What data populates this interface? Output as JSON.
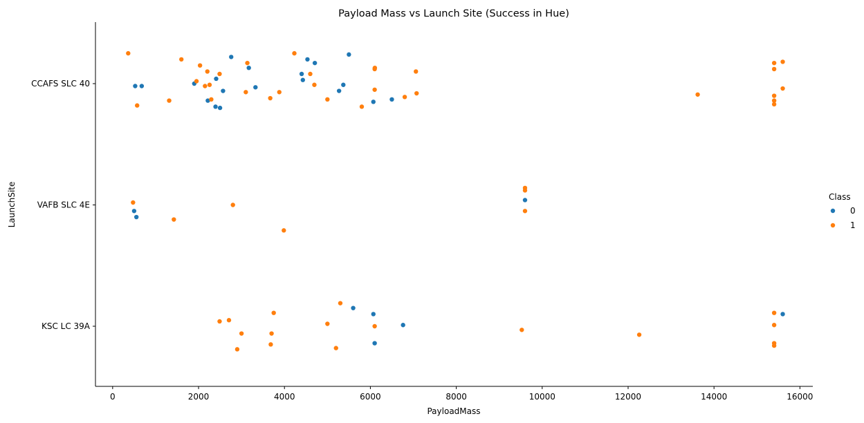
{
  "chart_data": {
    "type": "scatter",
    "title": "Payload Mass vs Launch Site (Success in Hue)",
    "xlabel": "PayloadMass",
    "ylabel": "LaunchSite",
    "xlim": [
      -400,
      16300
    ],
    "xticks": [
      0,
      2000,
      4000,
      6000,
      8000,
      10000,
      12000,
      14000,
      16000
    ],
    "categories": [
      "CCAFS SLC 40",
      "VAFB SLC 4E",
      "KSC LC 39A"
    ],
    "legend": {
      "title": "Class",
      "placement": "right"
    },
    "colors": {
      "0": "#1f77b4",
      "1": "#ff7f0e"
    },
    "series": [
      {
        "name": "0",
        "points": [
          {
            "x": 525,
            "site": "CCAFS SLC 40",
            "j": -0.02
          },
          {
            "x": 677,
            "site": "CCAFS SLC 40",
            "j": -0.02
          },
          {
            "x": 1900,
            "site": "CCAFS SLC 40",
            "j": 0.0
          },
          {
            "x": 2216,
            "site": "CCAFS SLC 40",
            "j": -0.14
          },
          {
            "x": 2395,
            "site": "CCAFS SLC 40",
            "j": -0.19
          },
          {
            "x": 2500,
            "site": "CCAFS SLC 40",
            "j": -0.2
          },
          {
            "x": 2570,
            "site": "CCAFS SLC 40",
            "j": -0.06
          },
          {
            "x": 2410,
            "site": "CCAFS SLC 40",
            "j": 0.04
          },
          {
            "x": 2760,
            "site": "CCAFS SLC 40",
            "j": 0.22
          },
          {
            "x": 3170,
            "site": "CCAFS SLC 40",
            "j": 0.13
          },
          {
            "x": 3325,
            "site": "CCAFS SLC 40",
            "j": -0.03
          },
          {
            "x": 4400,
            "site": "CCAFS SLC 40",
            "j": 0.08
          },
          {
            "x": 4428,
            "site": "CCAFS SLC 40",
            "j": 0.03
          },
          {
            "x": 4535,
            "site": "CCAFS SLC 40",
            "j": 0.2
          },
          {
            "x": 4707,
            "site": "CCAFS SLC 40",
            "j": 0.17
          },
          {
            "x": 5271,
            "site": "CCAFS SLC 40",
            "j": -0.06
          },
          {
            "x": 5370,
            "site": "CCAFS SLC 40",
            "j": -0.01
          },
          {
            "x": 5500,
            "site": "CCAFS SLC 40",
            "j": 0.24
          },
          {
            "x": 6070,
            "site": "CCAFS SLC 40",
            "j": -0.15
          },
          {
            "x": 6500,
            "site": "CCAFS SLC 40",
            "j": -0.13
          },
          {
            "x": 500,
            "site": "VAFB SLC 4E",
            "j": -0.05
          },
          {
            "x": 553,
            "site": "VAFB SLC 4E",
            "j": -0.1
          },
          {
            "x": 9600,
            "site": "VAFB SLC 4E",
            "j": 0.04
          },
          {
            "x": 5600,
            "site": "KSC LC 39A",
            "j": 0.15
          },
          {
            "x": 6070,
            "site": "KSC LC 39A",
            "j": 0.1
          },
          {
            "x": 6100,
            "site": "KSC LC 39A",
            "j": -0.14
          },
          {
            "x": 6761,
            "site": "KSC LC 39A",
            "j": 0.01
          },
          {
            "x": 15600,
            "site": "KSC LC 39A",
            "j": 0.1
          }
        ]
      },
      {
        "name": "1",
        "points": [
          {
            "x": 362,
            "site": "CCAFS SLC 40",
            "j": 0.25
          },
          {
            "x": 570,
            "site": "CCAFS SLC 40",
            "j": -0.18
          },
          {
            "x": 1316,
            "site": "CCAFS SLC 40",
            "j": -0.14
          },
          {
            "x": 1600,
            "site": "CCAFS SLC 40",
            "j": 0.2
          },
          {
            "x": 1952,
            "site": "CCAFS SLC 40",
            "j": 0.02
          },
          {
            "x": 2034,
            "site": "CCAFS SLC 40",
            "j": 0.15
          },
          {
            "x": 2150,
            "site": "CCAFS SLC 40",
            "j": -0.02
          },
          {
            "x": 2205,
            "site": "CCAFS SLC 40",
            "j": 0.1
          },
          {
            "x": 2257,
            "site": "CCAFS SLC 40",
            "j": -0.01
          },
          {
            "x": 2296,
            "site": "CCAFS SLC 40",
            "j": -0.13
          },
          {
            "x": 2490,
            "site": "CCAFS SLC 40",
            "j": 0.08
          },
          {
            "x": 3100,
            "site": "CCAFS SLC 40",
            "j": -0.07
          },
          {
            "x": 3136,
            "site": "CCAFS SLC 40",
            "j": 0.17
          },
          {
            "x": 3669,
            "site": "CCAFS SLC 40",
            "j": -0.12
          },
          {
            "x": 3880,
            "site": "CCAFS SLC 40",
            "j": -0.07
          },
          {
            "x": 4230,
            "site": "CCAFS SLC 40",
            "j": 0.25
          },
          {
            "x": 4600,
            "site": "CCAFS SLC 40",
            "j": 0.08
          },
          {
            "x": 4696,
            "site": "CCAFS SLC 40",
            "j": -0.01
          },
          {
            "x": 5000,
            "site": "CCAFS SLC 40",
            "j": -0.13
          },
          {
            "x": 5800,
            "site": "CCAFS SLC 40",
            "j": -0.19
          },
          {
            "x": 6104,
            "site": "CCAFS SLC 40",
            "j": 0.13
          },
          {
            "x": 6100,
            "site": "CCAFS SLC 40",
            "j": 0.12
          },
          {
            "x": 6100,
            "site": "CCAFS SLC 40",
            "j": -0.05
          },
          {
            "x": 6800,
            "site": "CCAFS SLC 40",
            "j": -0.11
          },
          {
            "x": 7060,
            "site": "CCAFS SLC 40",
            "j": 0.1
          },
          {
            "x": 7076,
            "site": "CCAFS SLC 40",
            "j": -0.08
          },
          {
            "x": 13620,
            "site": "CCAFS SLC 40",
            "j": -0.09
          },
          {
            "x": 15400,
            "site": "CCAFS SLC 40",
            "j": 0.17
          },
          {
            "x": 15400,
            "site": "CCAFS SLC 40",
            "j": 0.12
          },
          {
            "x": 15400,
            "site": "CCAFS SLC 40",
            "j": -0.1
          },
          {
            "x": 15400,
            "site": "CCAFS SLC 40",
            "j": -0.14
          },
          {
            "x": 15400,
            "site": "CCAFS SLC 40",
            "j": -0.17
          },
          {
            "x": 15600,
            "site": "CCAFS SLC 40",
            "j": 0.18
          },
          {
            "x": 15600,
            "site": "CCAFS SLC 40",
            "j": -0.04
          },
          {
            "x": 475,
            "site": "VAFB SLC 4E",
            "j": 0.02
          },
          {
            "x": 1425,
            "site": "VAFB SLC 4E",
            "j": -0.12
          },
          {
            "x": 2800,
            "site": "VAFB SLC 4E",
            "j": 0.0
          },
          {
            "x": 3985,
            "site": "VAFB SLC 4E",
            "j": -0.21
          },
          {
            "x": 9600,
            "site": "VAFB SLC 4E",
            "j": 0.14
          },
          {
            "x": 9600,
            "site": "VAFB SLC 4E",
            "j": 0.12
          },
          {
            "x": 9600,
            "site": "VAFB SLC 4E",
            "j": -0.05
          },
          {
            "x": 2490,
            "site": "KSC LC 39A",
            "j": 0.04
          },
          {
            "x": 2708,
            "site": "KSC LC 39A",
            "j": 0.05
          },
          {
            "x": 2900,
            "site": "KSC LC 39A",
            "j": -0.19
          },
          {
            "x": 3000,
            "site": "KSC LC 39A",
            "j": -0.06
          },
          {
            "x": 3681,
            "site": "KSC LC 39A",
            "j": -0.15
          },
          {
            "x": 3700,
            "site": "KSC LC 39A",
            "j": -0.06
          },
          {
            "x": 3750,
            "site": "KSC LC 39A",
            "j": 0.11
          },
          {
            "x": 5000,
            "site": "KSC LC 39A",
            "j": 0.02
          },
          {
            "x": 5300,
            "site": "KSC LC 39A",
            "j": 0.19
          },
          {
            "x": 5200,
            "site": "KSC LC 39A",
            "j": -0.18
          },
          {
            "x": 6100,
            "site": "KSC LC 39A",
            "j": 0.0
          },
          {
            "x": 9525,
            "site": "KSC LC 39A",
            "j": -0.03
          },
          {
            "x": 12259,
            "site": "KSC LC 39A",
            "j": -0.07
          },
          {
            "x": 15400,
            "site": "KSC LC 39A",
            "j": 0.11
          },
          {
            "x": 15400,
            "site": "KSC LC 39A",
            "j": 0.01
          },
          {
            "x": 15400,
            "site": "KSC LC 39A",
            "j": -0.14
          },
          {
            "x": 15400,
            "site": "KSC LC 39A",
            "j": -0.16
          }
        ]
      }
    ]
  }
}
